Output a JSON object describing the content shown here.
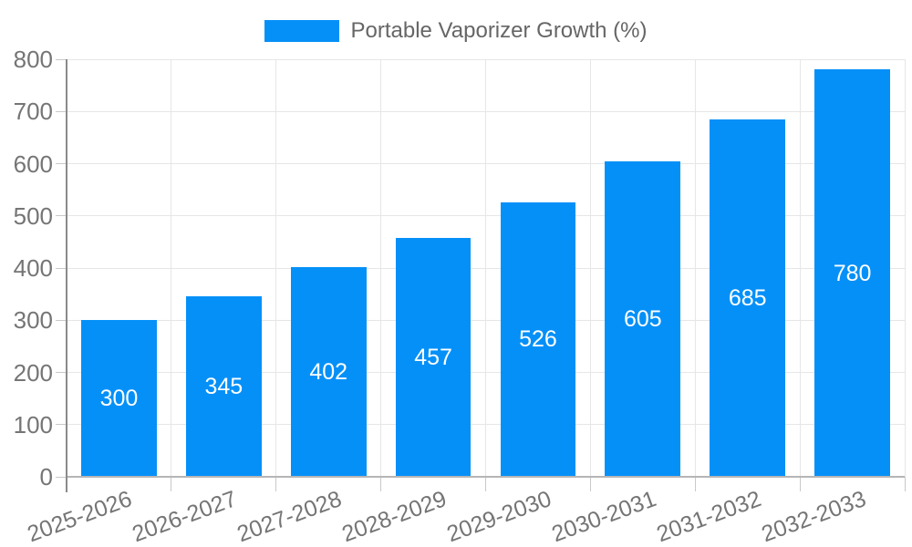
{
  "chart_data": {
    "type": "bar",
    "title": "Portable Vaporizer Growth (%)",
    "categories": [
      "2025-2026",
      "2026-2027",
      "2027-2028",
      "2028-2029",
      "2029-2030",
      "2030-2031",
      "2031-2032",
      "2032-2033"
    ],
    "values": [
      300,
      345,
      402,
      457,
      526,
      605,
      685,
      780
    ],
    "xlabel": "",
    "ylabel": "",
    "ylim": [
      0,
      800
    ],
    "yticks": [
      "0",
      "100",
      "200",
      "300",
      "400",
      "500",
      "600",
      "700",
      "800"
    ],
    "grid": true,
    "legend_position": "top",
    "bar_value_labels_inside": true
  },
  "colors": {
    "bar": "#0590f8",
    "bar_label_text": "#ffffff",
    "legend_text": "#666666",
    "axis_text": "#757575",
    "grid_line": "#e6e6e6",
    "y_axis_line": "#8a8a8a",
    "x_axis_line": "#b5b5b5",
    "tick": "#c9c9c9",
    "background": "#ffffff"
  }
}
